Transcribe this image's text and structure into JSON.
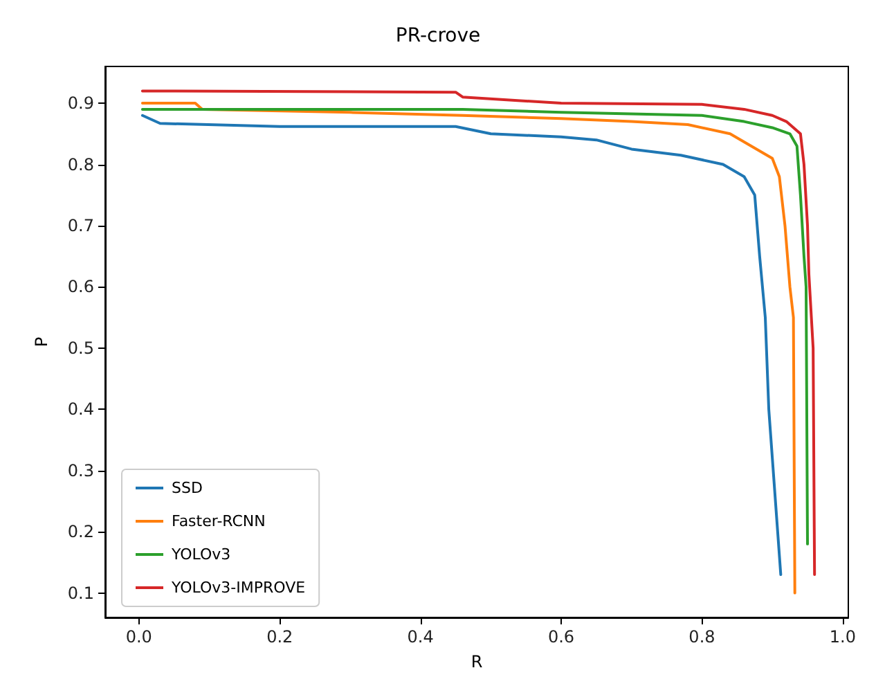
{
  "chart_data": {
    "type": "line",
    "title": "PR-crove",
    "xlabel": "R",
    "ylabel": "P",
    "xlim": [
      -0.048,
      1.008
    ],
    "ylim": [
      0.06,
      0.96
    ],
    "xticks": [
      {
        "value": 0,
        "label": "0.0"
      },
      0.2,
      0.4,
      0.6,
      0.8,
      {
        "value": 1,
        "label": "1.0"
      }
    ],
    "yticks": [
      0.1,
      0.2,
      0.3,
      0.4,
      0.5,
      0.6,
      0.7,
      0.8,
      0.9
    ],
    "grid": false,
    "legend": "bottom left",
    "line_style": "solid",
    "marker": "none",
    "series": [
      {
        "name": "SSD",
        "color": "#1f77b4",
        "x": [
          0.005,
          0.03,
          0.2,
          0.45,
          0.5,
          0.6,
          0.65,
          0.7,
          0.77,
          0.83,
          0.86,
          0.875,
          0.882,
          0.89,
          0.895,
          0.912
        ],
        "values": [
          0.88,
          0.867,
          0.862,
          0.862,
          0.85,
          0.845,
          0.84,
          0.825,
          0.815,
          0.8,
          0.78,
          0.75,
          0.65,
          0.55,
          0.4,
          0.13
        ]
      },
      {
        "name": "Faster-RCNN",
        "color": "#ff7f0e",
        "x": [
          0.005,
          0.08,
          0.09,
          0.3,
          0.46,
          0.6,
          0.7,
          0.78,
          0.84,
          0.87,
          0.9,
          0.91,
          0.918,
          0.925,
          0.93,
          0.932
        ],
        "values": [
          0.9,
          0.9,
          0.89,
          0.885,
          0.88,
          0.875,
          0.87,
          0.865,
          0.85,
          0.83,
          0.81,
          0.78,
          0.7,
          0.6,
          0.55,
          0.1
        ]
      },
      {
        "name": "YOLOv3",
        "color": "#2ca02c",
        "x": [
          0.005,
          0.46,
          0.6,
          0.8,
          0.86,
          0.9,
          0.925,
          0.935,
          0.94,
          0.945,
          0.948,
          0.95
        ],
        "values": [
          0.89,
          0.89,
          0.885,
          0.88,
          0.87,
          0.86,
          0.85,
          0.83,
          0.75,
          0.65,
          0.6,
          0.18
        ]
      },
      {
        "name": "YOLOv3-IMPROVE",
        "color": "#d62728",
        "x": [
          0.005,
          0.45,
          0.46,
          0.6,
          0.8,
          0.86,
          0.9,
          0.92,
          0.94,
          0.945,
          0.95,
          0.952,
          0.958,
          0.96
        ],
        "values": [
          0.92,
          0.918,
          0.91,
          0.9,
          0.898,
          0.89,
          0.88,
          0.87,
          0.85,
          0.8,
          0.7,
          0.62,
          0.5,
          0.13
        ]
      }
    ]
  }
}
